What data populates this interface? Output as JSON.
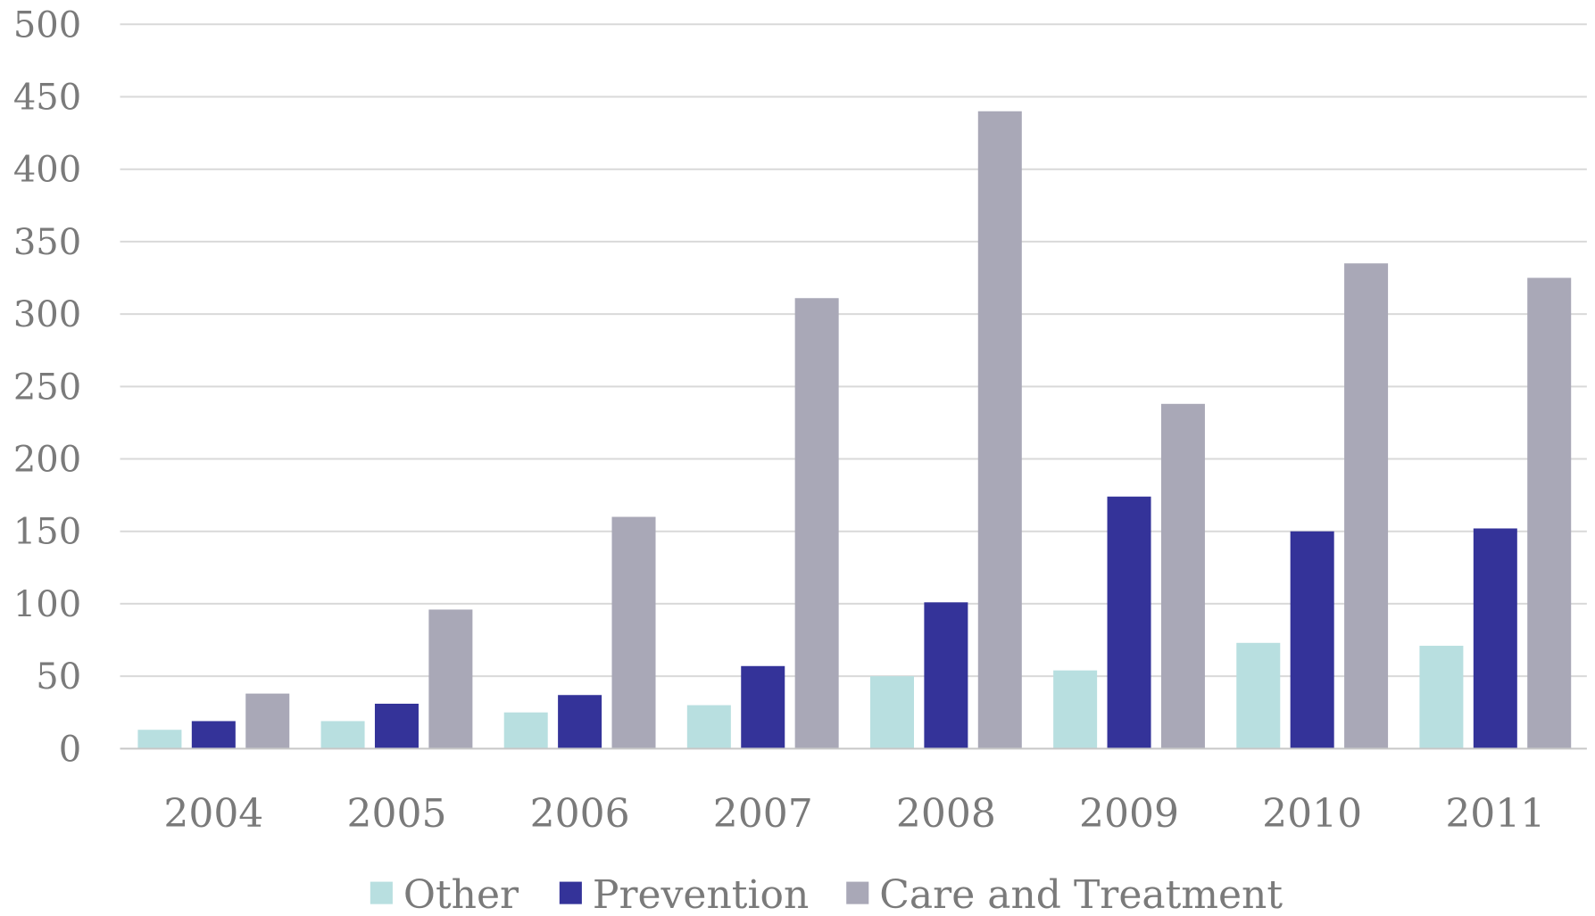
{
  "chart_data": {
    "type": "bar",
    "title": "",
    "xlabel": "",
    "ylabel": "",
    "ylim": [
      0,
      500
    ],
    "yticks": [
      0,
      50,
      100,
      150,
      200,
      250,
      300,
      350,
      400,
      450,
      500
    ],
    "grid": true,
    "legend_position": "bottom",
    "categories": [
      "2004",
      "2005",
      "2006",
      "2007",
      "2008",
      "2009",
      "2010",
      "2011"
    ],
    "series": [
      {
        "name": "Other",
        "color": "#b8dfe0",
        "values": [
          13,
          19,
          25,
          30,
          50,
          54,
          73,
          71
        ]
      },
      {
        "name": "Prevention",
        "color": "#343399",
        "values": [
          19,
          31,
          37,
          57,
          101,
          174,
          150,
          152
        ]
      },
      {
        "name": "Care and Treatment",
        "color": "#a9a8b7",
        "values": [
          38,
          96,
          160,
          311,
          440,
          238,
          335,
          325
        ]
      }
    ]
  }
}
